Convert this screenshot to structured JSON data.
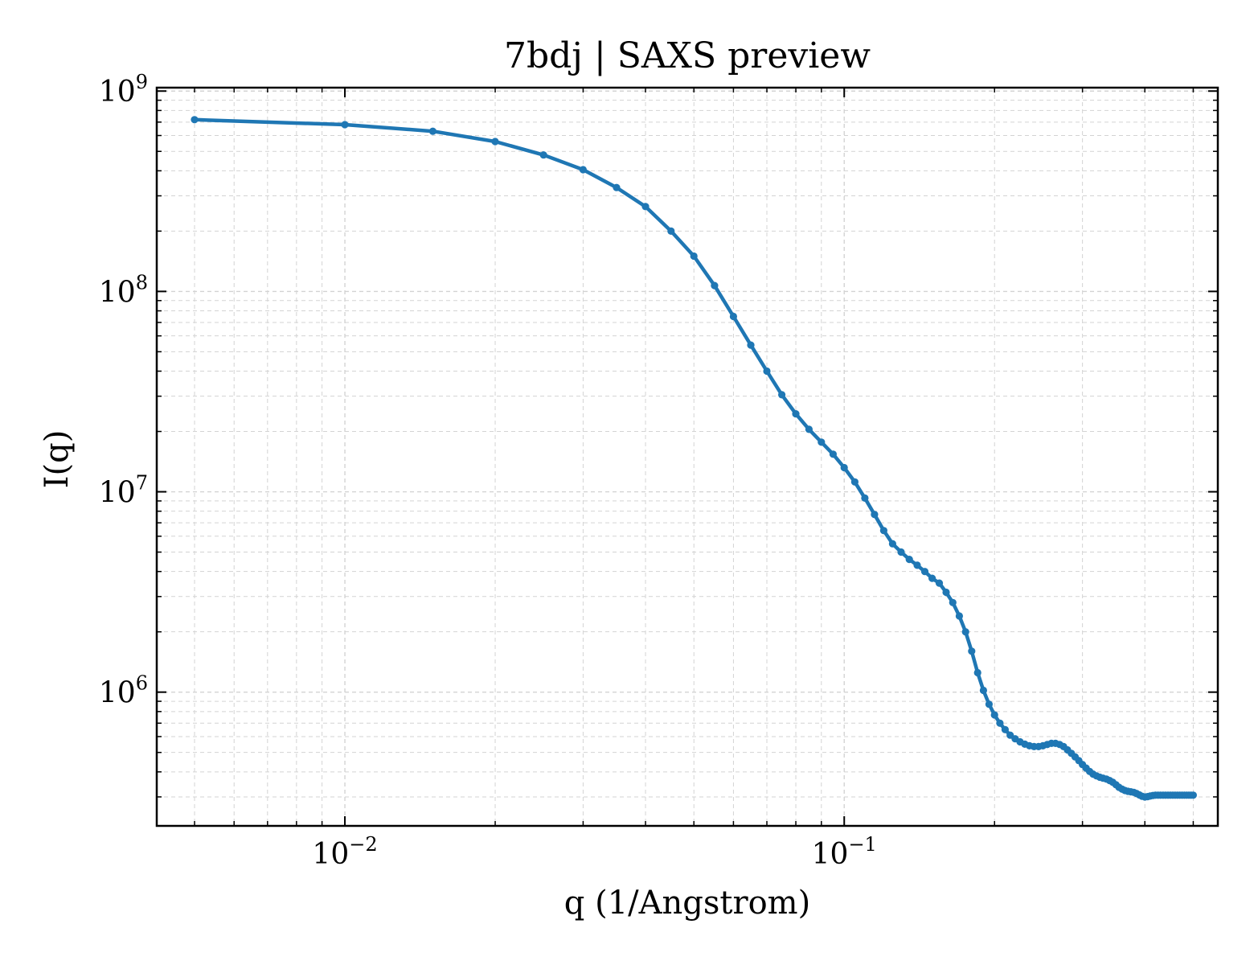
{
  "chart_data": {
    "type": "line",
    "title": "7bdj | SAXS preview",
    "xlabel": "q (1/Angstrom)",
    "ylabel": "I(q)",
    "x_scale": "log",
    "y_scale": "log",
    "xlim": [
      0.0042,
      0.56
    ],
    "ylim": [
      215000,
      1040000000
    ],
    "grid": true,
    "legend": "none",
    "x_ticks": [
      {
        "value": 0.01,
        "base": "10",
        "exp": "−2"
      },
      {
        "value": 0.1,
        "base": "10",
        "exp": "−1"
      }
    ],
    "y_ticks": [
      {
        "value": 1000000,
        "base": "10",
        "exp": "6"
      },
      {
        "value": 10000000,
        "base": "10",
        "exp": "7"
      },
      {
        "value": 100000000,
        "base": "10",
        "exp": "8"
      },
      {
        "value": 1000000000,
        "base": "10",
        "exp": "9"
      }
    ],
    "colors": {
      "series": "#1f77b4",
      "grid": "#d3d3d3",
      "axes": "#000000"
    },
    "series": [
      {
        "x": [
          0.005,
          0.01,
          0.015,
          0.02,
          0.025,
          0.03,
          0.035,
          0.04,
          0.045,
          0.05,
          0.055,
          0.06,
          0.065,
          0.07,
          0.075,
          0.08,
          0.085,
          0.09,
          0.095,
          0.1,
          0.105,
          0.11,
          0.115,
          0.12,
          0.125,
          0.13,
          0.135,
          0.14,
          0.145,
          0.15,
          0.155,
          0.16,
          0.165,
          0.17,
          0.175,
          0.18,
          0.185,
          0.19,
          0.195,
          0.2,
          0.205,
          0.21,
          0.215,
          0.22,
          0.225,
          0.23,
          0.235,
          0.24,
          0.245,
          0.25,
          0.255,
          0.26,
          0.265,
          0.27,
          0.275,
          0.28,
          0.285,
          0.29,
          0.295,
          0.3,
          0.305,
          0.31,
          0.315,
          0.32,
          0.325,
          0.33,
          0.335,
          0.34,
          0.345,
          0.35,
          0.355,
          0.36,
          0.365,
          0.37,
          0.375,
          0.38,
          0.385,
          0.39,
          0.395,
          0.4,
          0.405,
          0.41,
          0.415,
          0.42,
          0.425,
          0.43,
          0.435,
          0.44,
          0.445,
          0.45,
          0.455,
          0.46,
          0.465,
          0.47,
          0.475,
          0.48,
          0.485,
          0.49,
          0.495,
          0.5
        ],
        "y": [
          720000000,
          680000000,
          630000000,
          560000000,
          480000000,
          405000000,
          330000000,
          265000000,
          200000000,
          150000000,
          107000000,
          75000000,
          54000000,
          40000000,
          30500000,
          24500000,
          20500000,
          17700000,
          15400000,
          13200000,
          11200000,
          9300000,
          7700000,
          6400000,
          5500000,
          5000000,
          4600000,
          4300000,
          4000000,
          3700000,
          3500000,
          3150000,
          2800000,
          2400000,
          2000000,
          1600000,
          1250000,
          1020000,
          870000,
          770000,
          700000,
          650000,
          610000,
          585000,
          565000,
          550000,
          540000,
          535000,
          535000,
          540000,
          548000,
          555000,
          555000,
          548000,
          535000,
          515000,
          495000,
          475000,
          455000,
          435000,
          418000,
          402000,
          390000,
          382000,
          376000,
          372000,
          368000,
          362000,
          355000,
          345000,
          335000,
          328000,
          323000,
          320000,
          318000,
          316000,
          312000,
          307000,
          302000,
          300000,
          301000,
          303000,
          305000,
          306000,
          306000,
          306000,
          306000,
          306000,
          306000,
          306000,
          306000,
          306000,
          306000,
          306000,
          306000,
          306000,
          306000,
          306000,
          306000,
          306000
        ]
      }
    ]
  }
}
